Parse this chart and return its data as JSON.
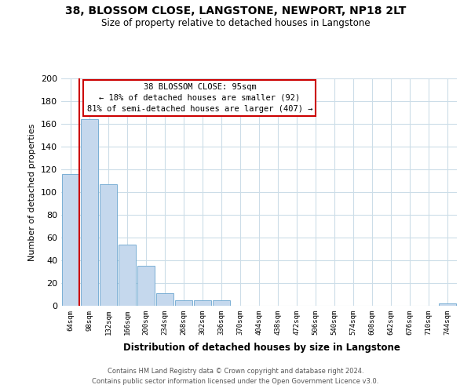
{
  "title_line1": "38, BLOSSOM CLOSE, LANGSTONE, NEWPORT, NP18 2LT",
  "title_line2": "Size of property relative to detached houses in Langstone",
  "xlabel": "Distribution of detached houses by size in Langstone",
  "ylabel": "Number of detached properties",
  "bar_labels": [
    "64sqm",
    "98sqm",
    "132sqm",
    "166sqm",
    "200sqm",
    "234sqm",
    "268sqm",
    "302sqm",
    "336sqm",
    "370sqm",
    "404sqm",
    "438sqm",
    "472sqm",
    "506sqm",
    "540sqm",
    "574sqm",
    "608sqm",
    "642sqm",
    "676sqm",
    "710sqm",
    "744sqm"
  ],
  "bar_values": [
    116,
    164,
    107,
    54,
    35,
    11,
    5,
    5,
    5,
    0,
    0,
    0,
    0,
    0,
    0,
    0,
    0,
    0,
    0,
    0,
    2
  ],
  "bar_color": "#c5d8ed",
  "bar_edge_color": "#7aafd4",
  "ylim": [
    0,
    200
  ],
  "yticks": [
    0,
    20,
    40,
    60,
    80,
    100,
    120,
    140,
    160,
    180,
    200
  ],
  "property_line_color": "#cc0000",
  "annotation_title": "38 BLOSSOM CLOSE: 95sqm",
  "annotation_line1": "← 18% of detached houses are smaller (92)",
  "annotation_line2": "81% of semi-detached houses are larger (407) →",
  "annotation_box_color": "#cc0000",
  "footer_line1": "Contains HM Land Registry data © Crown copyright and database right 2024.",
  "footer_line2": "Contains public sector information licensed under the Open Government Licence v3.0.",
  "background_color": "#ffffff",
  "grid_color": "#ccdde8"
}
